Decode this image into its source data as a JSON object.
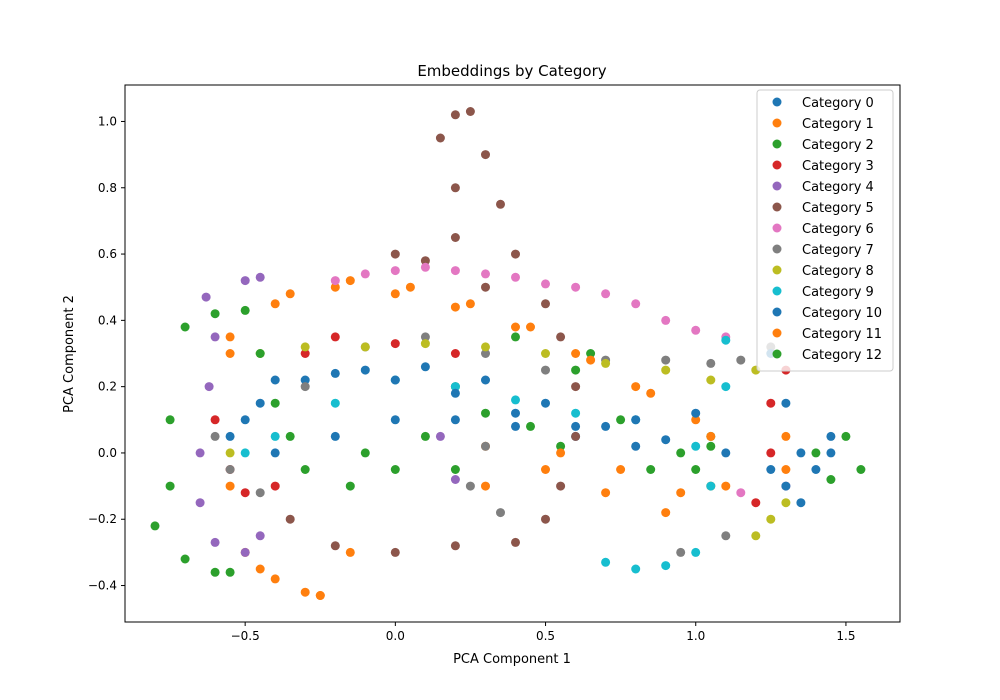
{
  "chart_data": {
    "type": "scatter",
    "title": "Embeddings by Category",
    "xlabel": "PCA Component 1",
    "ylabel": "PCA Component 2",
    "xlim": [
      -0.9,
      1.68
    ],
    "ylim": [
      -0.51,
      1.11
    ],
    "xticks": [
      -0.5,
      0.0,
      0.5,
      1.0,
      1.5
    ],
    "xtick_labels": [
      "−0.5",
      "0.0",
      "0.5",
      "1.0",
      "1.5"
    ],
    "yticks": [
      -0.4,
      -0.2,
      0.0,
      0.2,
      0.4,
      0.6,
      0.8,
      1.0
    ],
    "ytick_labels": [
      "−0.4",
      "−0.2",
      "0.0",
      "0.2",
      "0.4",
      "0.6",
      "0.8",
      "1.0"
    ],
    "grid": false,
    "legend_position": "top-right",
    "series": [
      {
        "name": "Category 0",
        "color": "#1f77b4",
        "points": [
          [
            -0.55,
            0.05
          ],
          [
            -0.45,
            0.15
          ],
          [
            -0.3,
            0.22
          ],
          [
            -0.1,
            0.25
          ],
          [
            0.1,
            0.26
          ],
          [
            0.3,
            0.22
          ],
          [
            0.5,
            0.15
          ],
          [
            0.7,
            0.08
          ],
          [
            0.9,
            0.04
          ],
          [
            1.1,
            0.0
          ],
          [
            1.25,
            -0.05
          ],
          [
            1.35,
            0.0
          ],
          [
            1.45,
            0.05
          ],
          [
            -0.4,
            0.0
          ],
          [
            -0.2,
            0.05
          ],
          [
            0.0,
            0.1
          ],
          [
            0.2,
            0.1
          ],
          [
            0.4,
            0.08
          ],
          [
            0.6,
            0.05
          ],
          [
            0.8,
            0.02
          ]
        ]
      },
      {
        "name": "Category 1",
        "color": "#ff7f0e",
        "points": [
          [
            -0.55,
            0.3
          ],
          [
            -0.4,
            0.45
          ],
          [
            -0.2,
            0.5
          ],
          [
            0.0,
            0.48
          ],
          [
            0.2,
            0.44
          ],
          [
            0.4,
            0.38
          ],
          [
            0.6,
            0.3
          ],
          [
            0.8,
            0.2
          ],
          [
            1.0,
            0.1
          ],
          [
            1.05,
            -0.1
          ],
          [
            0.9,
            -0.18
          ],
          [
            0.7,
            -0.12
          ],
          [
            0.5,
            -0.05
          ],
          [
            0.3,
            0.02
          ],
          [
            -0.55,
            -0.1
          ],
          [
            -0.5,
            -0.3
          ],
          [
            -0.4,
            -0.38
          ],
          [
            -0.25,
            -0.43
          ],
          [
            -0.15,
            -0.3
          ],
          [
            0.3,
            -0.1
          ]
        ]
      },
      {
        "name": "Category 2",
        "color": "#2ca02c",
        "points": [
          [
            0.1,
            0.05
          ],
          [
            0.2,
            -0.05
          ],
          [
            0.3,
            0.12
          ],
          [
            0.45,
            0.08
          ],
          [
            0.55,
            0.02
          ],
          [
            0.65,
            0.3
          ],
          [
            0.75,
            0.1
          ],
          [
            0.85,
            -0.05
          ],
          [
            0.95,
            0.0
          ],
          [
            1.05,
            0.05
          ],
          [
            0.0,
            -0.05
          ],
          [
            -0.1,
            0.0
          ],
          [
            0.6,
            0.25
          ],
          [
            0.4,
            0.35
          ],
          [
            0.2,
            0.2
          ]
        ]
      },
      {
        "name": "Category 3",
        "color": "#d62728",
        "points": [
          [
            -0.6,
            0.1
          ],
          [
            -0.55,
            -0.05
          ],
          [
            -0.5,
            -0.12
          ],
          [
            -0.4,
            -0.1
          ],
          [
            -0.3,
            0.3
          ],
          [
            -0.2,
            0.35
          ],
          [
            0.0,
            0.33
          ],
          [
            0.2,
            0.3
          ],
          [
            1.25,
            0.15
          ],
          [
            1.25,
            0.0
          ],
          [
            1.2,
            -0.15
          ],
          [
            1.3,
            0.25
          ]
        ]
      },
      {
        "name": "Category 4",
        "color": "#9467bd",
        "points": [
          [
            -0.63,
            0.47
          ],
          [
            -0.6,
            0.35
          ],
          [
            -0.62,
            0.2
          ],
          [
            -0.65,
            0.0
          ],
          [
            -0.65,
            -0.15
          ],
          [
            -0.6,
            -0.27
          ],
          [
            -0.5,
            -0.3
          ],
          [
            -0.45,
            -0.25
          ],
          [
            -0.5,
            0.52
          ],
          [
            -0.45,
            0.53
          ],
          [
            0.15,
            0.05
          ],
          [
            0.2,
            -0.08
          ]
        ]
      },
      {
        "name": "Category 5",
        "color": "#8c564b",
        "points": [
          [
            0.2,
            1.02
          ],
          [
            0.25,
            1.03
          ],
          [
            0.15,
            0.95
          ],
          [
            0.3,
            0.9
          ],
          [
            0.2,
            0.8
          ],
          [
            0.35,
            0.75
          ],
          [
            0.2,
            0.65
          ],
          [
            0.4,
            0.6
          ],
          [
            0.3,
            0.5
          ],
          [
            0.5,
            0.45
          ],
          [
            0.55,
            0.35
          ],
          [
            0.6,
            0.2
          ],
          [
            0.6,
            0.05
          ],
          [
            0.55,
            -0.1
          ],
          [
            0.5,
            -0.2
          ],
          [
            0.4,
            -0.27
          ],
          [
            0.2,
            -0.28
          ],
          [
            0.0,
            -0.3
          ],
          [
            -0.2,
            -0.28
          ],
          [
            -0.35,
            -0.2
          ],
          [
            0.0,
            0.6
          ],
          [
            0.1,
            0.58
          ]
        ]
      },
      {
        "name": "Category 6",
        "color": "#e377c2",
        "points": [
          [
            -0.2,
            0.52
          ],
          [
            -0.1,
            0.54
          ],
          [
            0.0,
            0.55
          ],
          [
            0.1,
            0.56
          ],
          [
            0.2,
            0.55
          ],
          [
            0.3,
            0.54
          ],
          [
            0.4,
            0.53
          ],
          [
            0.5,
            0.51
          ],
          [
            0.6,
            0.5
          ],
          [
            0.7,
            0.48
          ],
          [
            0.8,
            0.45
          ],
          [
            0.9,
            0.4
          ],
          [
            1.0,
            0.37
          ],
          [
            1.1,
            0.35
          ],
          [
            1.3,
            -0.1
          ],
          [
            1.15,
            -0.12
          ]
        ]
      },
      {
        "name": "Category 7",
        "color": "#7f7f7f",
        "points": [
          [
            -0.6,
            0.05
          ],
          [
            -0.55,
            -0.05
          ],
          [
            -0.45,
            -0.12
          ],
          [
            -0.3,
            0.2
          ],
          [
            -0.1,
            0.32
          ],
          [
            0.1,
            0.35
          ],
          [
            0.3,
            0.3
          ],
          [
            0.5,
            0.25
          ],
          [
            0.7,
            0.28
          ],
          [
            0.9,
            0.28
          ],
          [
            1.05,
            0.27
          ],
          [
            1.15,
            0.28
          ],
          [
            1.25,
            0.32
          ],
          [
            0.3,
            0.02
          ],
          [
            0.25,
            -0.1
          ],
          [
            0.35,
            -0.18
          ],
          [
            1.1,
            -0.25
          ],
          [
            0.95,
            -0.3
          ]
        ]
      },
      {
        "name": "Category 8",
        "color": "#bcbd22",
        "points": [
          [
            -0.55,
            0.0
          ],
          [
            -0.45,
            0.3
          ],
          [
            -0.3,
            0.32
          ],
          [
            -0.1,
            0.32
          ],
          [
            0.1,
            0.33
          ],
          [
            0.3,
            0.32
          ],
          [
            0.5,
            0.3
          ],
          [
            0.7,
            0.27
          ],
          [
            0.9,
            0.25
          ],
          [
            1.05,
            0.22
          ],
          [
            1.2,
            0.25
          ],
          [
            1.25,
            -0.2
          ],
          [
            1.3,
            -0.15
          ],
          [
            1.2,
            -0.25
          ]
        ]
      },
      {
        "name": "Category 9",
        "color": "#17becf",
        "points": [
          [
            -0.5,
            0.0
          ],
          [
            -0.4,
            0.05
          ],
          [
            -0.2,
            0.15
          ],
          [
            0.0,
            0.22
          ],
          [
            0.2,
            0.2
          ],
          [
            0.4,
            0.16
          ],
          [
            0.6,
            0.12
          ],
          [
            0.8,
            0.1
          ],
          [
            1.0,
            0.02
          ],
          [
            1.1,
            0.34
          ],
          [
            1.1,
            0.2
          ],
          [
            1.05,
            -0.1
          ],
          [
            1.0,
            -0.3
          ],
          [
            0.9,
            -0.34
          ],
          [
            0.8,
            -0.35
          ],
          [
            0.7,
            -0.33
          ]
        ]
      },
      {
        "name": "Category 10",
        "color": "#1f77b4",
        "points": [
          [
            -0.5,
            0.1
          ],
          [
            -0.4,
            0.22
          ],
          [
            -0.2,
            0.24
          ],
          [
            0.0,
            0.22
          ],
          [
            0.2,
            0.18
          ],
          [
            0.4,
            0.12
          ],
          [
            0.6,
            0.08
          ],
          [
            0.8,
            0.1
          ],
          [
            1.0,
            0.12
          ],
          [
            1.25,
            0.3
          ],
          [
            1.3,
            0.15
          ],
          [
            1.3,
            -0.1
          ],
          [
            1.35,
            -0.15
          ],
          [
            1.4,
            -0.05
          ],
          [
            1.45,
            0.0
          ]
        ]
      },
      {
        "name": "Category 11",
        "color": "#ff7f0e",
        "points": [
          [
            -0.55,
            0.35
          ],
          [
            -0.35,
            0.48
          ],
          [
            -0.15,
            0.52
          ],
          [
            0.05,
            0.5
          ],
          [
            0.25,
            0.45
          ],
          [
            0.45,
            0.38
          ],
          [
            0.65,
            0.28
          ],
          [
            0.85,
            0.18
          ],
          [
            1.05,
            0.05
          ],
          [
            1.1,
            -0.1
          ],
          [
            0.95,
            -0.12
          ],
          [
            0.75,
            -0.05
          ],
          [
            0.55,
            0.0
          ],
          [
            -0.45,
            -0.35
          ],
          [
            -0.3,
            -0.42
          ],
          [
            -0.25,
            -0.43
          ],
          [
            1.3,
            0.05
          ],
          [
            1.3,
            -0.05
          ]
        ]
      },
      {
        "name": "Category 12",
        "color": "#2ca02c",
        "points": [
          [
            -0.7,
            0.38
          ],
          [
            -0.6,
            0.42
          ],
          [
            -0.5,
            0.43
          ],
          [
            -0.45,
            0.3
          ],
          [
            -0.4,
            0.15
          ],
          [
            -0.35,
            0.05
          ],
          [
            -0.3,
            -0.05
          ],
          [
            -0.15,
            -0.1
          ],
          [
            -0.75,
            0.1
          ],
          [
            -0.75,
            -0.1
          ],
          [
            -0.8,
            -0.22
          ],
          [
            -0.7,
            -0.32
          ],
          [
            -0.6,
            -0.36
          ],
          [
            -0.55,
            -0.36
          ],
          [
            1.4,
            0.0
          ],
          [
            1.5,
            0.05
          ],
          [
            1.55,
            -0.05
          ],
          [
            1.45,
            -0.08
          ],
          [
            1.0,
            -0.05
          ],
          [
            1.05,
            0.02
          ]
        ]
      }
    ]
  }
}
